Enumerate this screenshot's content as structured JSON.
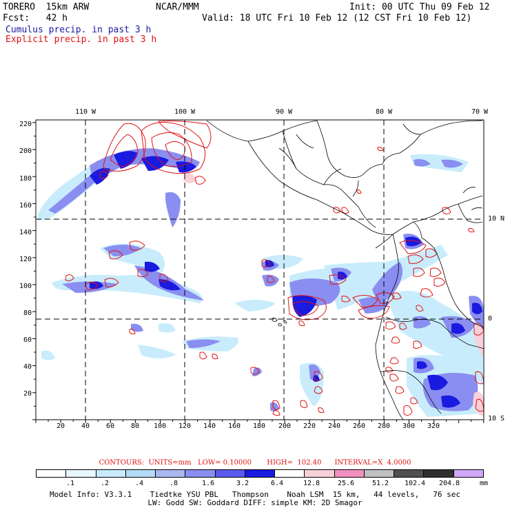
{
  "header": {
    "model": "TORERO  15km ARW",
    "center": "NCAR/MMM",
    "init": "Init: 00 UTC Thu 09 Feb 12",
    "fcst": "Fcst:   42 h",
    "valid": "Valid: 18 UTC Fri 10 Feb 12 (12 CST Fri 10 Feb 12)",
    "cumulus_label": "Cumulus precip. in past 3 h",
    "explicit_label": "Explicit precip. in past 3 h"
  },
  "map": {
    "y_ticks": [
      "220",
      "200",
      "180",
      "160",
      "140",
      "120",
      "100",
      "80",
      "60",
      "40",
      "20"
    ],
    "x_ticks": [
      "20",
      "40",
      "60",
      "80",
      "100",
      "120",
      "140",
      "160",
      "180",
      "200",
      "220",
      "240",
      "260",
      "280",
      "300",
      "320"
    ],
    "lon_labels": [
      "110 W",
      "100 W",
      "90 W",
      "80 W",
      "70 W"
    ],
    "lat_labels": [
      "10 N",
      "0",
      "10 S"
    ]
  },
  "contours_text": "CONTOURS:  UNITS=mm   LOW= 0.10000       HIGH=  102.40      INTERVAL=X  4.0000",
  "colorbar": {
    "colors": [
      "#ffffff",
      "#e8f6ff",
      "#c8ecfc",
      "#b4dcf6",
      "#aab8f0",
      "#8a8ef0",
      "#5a5af0",
      "#1a1ae0",
      "#ffffff",
      "#f8d0d8",
      "#f090c0",
      "#c0c0c0",
      "#505050",
      "#303030",
      "#d0a8f8"
    ],
    "labels": [
      ".1",
      ".2",
      ".4",
      ".8",
      "1.6",
      "3.2",
      "6.4",
      "12.8",
      "25.6",
      "51.2",
      "102.4",
      "204.8"
    ],
    "unit": "mm"
  },
  "model_info": {
    "line1": "Model Info: V3.3.1    Tiedtke YSU PBL   Thompson    Noah LSM  15 km,   44 levels,   76 sec",
    "line2": "LW: Godd SW: Goddard DIFF: simple KM: 2D Smagor"
  },
  "colors": {
    "cumulus": "#1a1ae0",
    "explicit": "#e01010",
    "light_precip": "#c8ecfc"
  }
}
